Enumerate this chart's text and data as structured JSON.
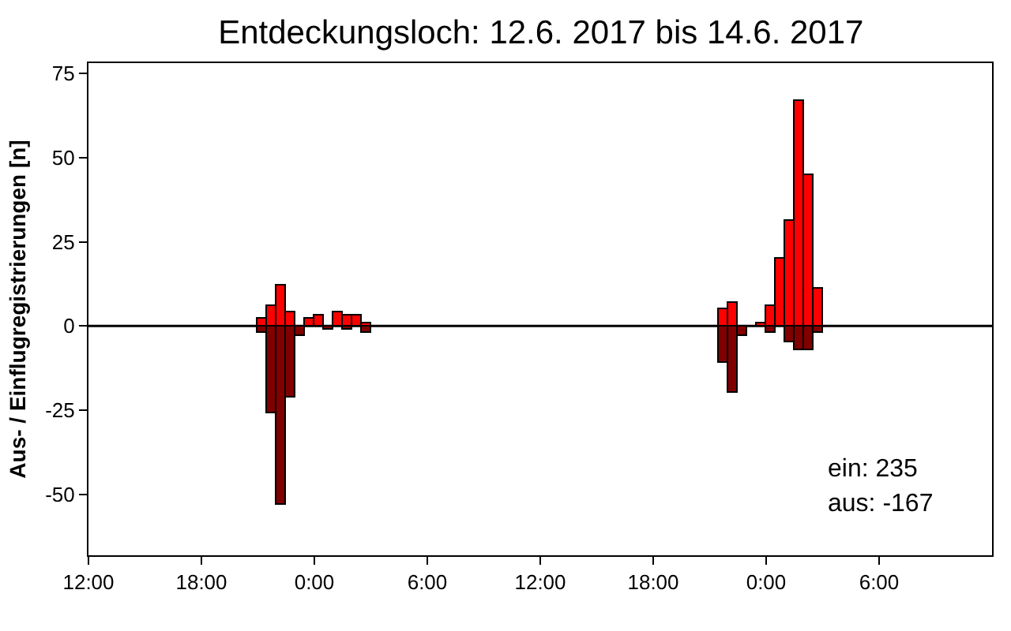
{
  "chart_data": {
    "type": "bar",
    "title": "Entdeckungsloch: 12.6. 2017 bis 14.6. 2017",
    "ylabel": "Aus- / Einflugregistrierungen [n]",
    "x": [
      "2017-06-12T21:00",
      "2017-06-12T21:30",
      "2017-06-12T22:00",
      "2017-06-12T22:30",
      "2017-06-12T23:00",
      "2017-06-12T23:30",
      "2017-06-13T00:00",
      "2017-06-13T00:30",
      "2017-06-13T01:00",
      "2017-06-13T01:30",
      "2017-06-13T02:00",
      "2017-06-13T02:30",
      "2017-06-13T21:30",
      "2017-06-13T22:00",
      "2017-06-13T22:30",
      "2017-06-13T23:30",
      "2017-06-14T00:00",
      "2017-06-14T00:30",
      "2017-06-14T01:00",
      "2017-06-14T01:30",
      "2017-06-14T02:00",
      "2017-06-14T02:30"
    ],
    "series": [
      {
        "color": "#ff0000",
        "values": [
          2,
          6,
          12,
          4,
          null,
          2,
          3,
          null,
          4,
          3,
          3,
          1,
          5,
          7,
          null,
          1,
          6,
          20,
          31,
          67,
          45,
          11
        ]
      },
      {
        "color": "#800000",
        "values": [
          -2,
          -26,
          -53,
          -21,
          -3,
          null,
          null,
          -1,
          null,
          -1,
          null,
          -2,
          -11,
          -20,
          -3,
          null,
          -2,
          null,
          -5,
          -7,
          -7,
          -2
        ]
      }
    ],
    "stacked": true,
    "xlim": [
      "2017-06-12T12:00",
      "2017-06-14T12:00"
    ],
    "xticks": [
      {
        "value": "2017-06-12T12:00",
        "label": "12:00"
      },
      {
        "value": "2017-06-12T18:00",
        "label": "18:00"
      },
      {
        "value": "2017-06-13T00:00",
        "label": "0:00"
      },
      {
        "value": "2017-06-13T06:00",
        "label": "6:00"
      },
      {
        "value": "2017-06-13T12:00",
        "label": "12:00"
      },
      {
        "value": "2017-06-13T18:00",
        "label": "18:00"
      },
      {
        "value": "2017-06-14T00:00",
        "label": "0:00"
      },
      {
        "value": "2017-06-14T06:00",
        "label": "6:00"
      }
    ],
    "ylim": [
      -68,
      78
    ],
    "yticks": [
      -50,
      -25,
      0,
      25,
      50,
      75
    ],
    "ref_lines": [
      {
        "axis": "y",
        "value": 0,
        "color": "#000000"
      }
    ],
    "annotations": [
      "ein: 235",
      "aus: -167"
    ]
  }
}
